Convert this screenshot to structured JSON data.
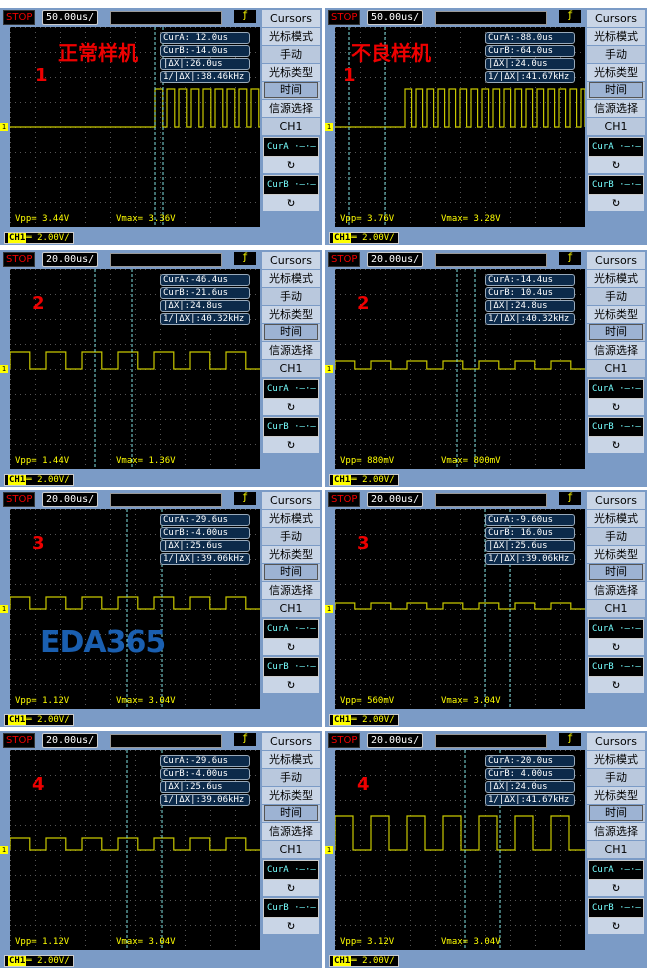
{
  "menu": {
    "title": "Cursors",
    "mode_label": "光标模式",
    "mode_value": "手动",
    "type_label": "光标类型",
    "type_value": "时间",
    "source_label": "信源选择",
    "source_value": "CH1",
    "cura": "CurA",
    "curb": "CurB"
  },
  "status": "STOP",
  "watermark": "EDA365",
  "colors": {
    "trace": "#c8c800",
    "cursor": "#7fe0e0",
    "panel": "#7b9bc6"
  },
  "panels": [
    {
      "label": "正常样机",
      "num": "1",
      "timebase": "50.00us/",
      "curA": "CurA: 12.0us",
      "curB": "CurB:-14.0us",
      "dx": "|ΔX|:26.0us",
      "inv": "1/|ΔX|:38.46kHz",
      "vpp": "Vpp= 3.44V",
      "vmax": "Vmax= 3.36V",
      "ch1": "2.00V/"
    },
    {
      "label": "不良样机",
      "num": "1",
      "timebase": "50.00us/",
      "curA": "CurA:-88.0us",
      "curB": "CurB:-64.0us",
      "dx": "|ΔX|:24.0us",
      "inv": "1/|ΔX|:41.67kHz",
      "vpp": "Vpp= 3.76V",
      "vmax": "Vmax= 3.28V",
      "ch1": "2.00V/"
    },
    {
      "label": "",
      "num": "2",
      "timebase": "20.00us/",
      "curA": "CurA:-46.4us",
      "curB": "CurB:-21.6us",
      "dx": "|ΔX|:24.8us",
      "inv": "1/|ΔX|:40.32kHz",
      "vpp": "Vpp= 1.44V",
      "vmax": "Vmax= 1.36V",
      "ch1": "2.00V/"
    },
    {
      "label": "",
      "num": "2",
      "timebase": "20.00us/",
      "curA": "CurA:-14.4us",
      "curB": "CurB: 10.4us",
      "dx": "|ΔX|:24.8us",
      "inv": "1/|ΔX|:40.32kHz",
      "vpp": "Vpp= 880mV",
      "vmax": "Vmax= 800mV",
      "ch1": "2.00V/"
    },
    {
      "label": "",
      "num": "3",
      "timebase": "20.00us/",
      "curA": "CurA:-29.6us",
      "curB": "CurB:-4.00us",
      "dx": "|ΔX|:25.6us",
      "inv": "1/|ΔX|:39.06kHz",
      "vpp": "Vpp= 1.12V",
      "vmax": "Vmax= 3.04V",
      "ch1": "2.00V/"
    },
    {
      "label": "",
      "num": "3",
      "timebase": "20.00us/",
      "curA": "CurA:-9.60us",
      "curB": "CurB: 16.0us",
      "dx": "|ΔX|:25.6us",
      "inv": "1/|ΔX|:39.06kHz",
      "vpp": "Vpp= 560mV",
      "vmax": "Vmax= 3.04V",
      "ch1": "2.00V/"
    },
    {
      "label": "",
      "num": "4",
      "timebase": "20.00us/",
      "curA": "CurA:-29.6us",
      "curB": "CurB:-4.00us",
      "dx": "|ΔX|:25.6us",
      "inv": "1/|ΔX|:39.06kHz",
      "vpp": "Vpp= 1.12V",
      "vmax": "Vmax= 3.04V",
      "ch1": "2.00V/"
    },
    {
      "label": "",
      "num": "4",
      "timebase": "20.00us/",
      "curA": "CurA:-20.0us",
      "curB": "CurB: 4.00us",
      "dx": "|ΔX|:24.0us",
      "inv": "1/|ΔX|:41.67kHz",
      "vpp": "Vpp= 3.12V",
      "vmax": "Vmax= 3.04V",
      "ch1": "2.00V/"
    }
  ]
}
